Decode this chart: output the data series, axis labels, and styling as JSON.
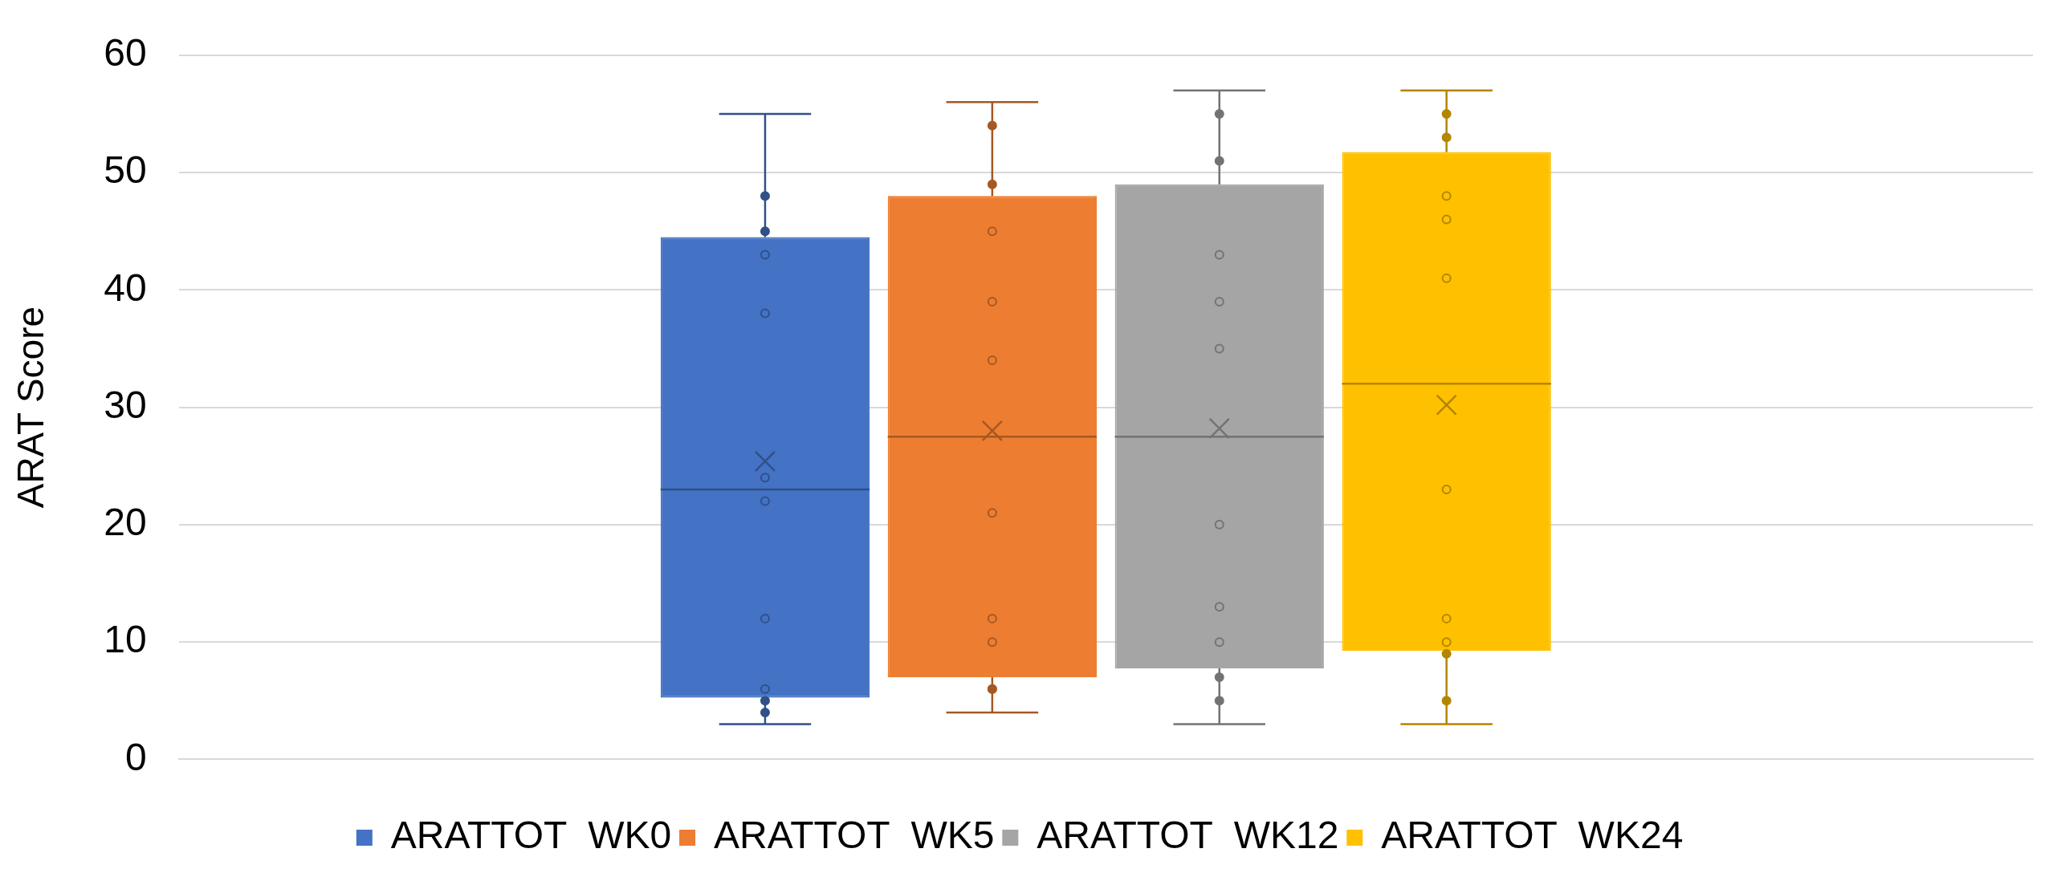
{
  "chart_data": {
    "type": "box",
    "ylabel": "ARAT Score",
    "categories": [
      null
    ],
    "ylim": [
      0,
      60
    ],
    "yticks": [
      0,
      10,
      20,
      30,
      40,
      50,
      60
    ],
    "grid": "y",
    "legend": "bottom",
    "series": [
      {
        "name": "ARATTOT  WK0",
        "color": "#4472c4",
        "boxes": [
          {
            "low": 3,
            "q1": 5.25,
            "median": 23,
            "q3": 44.5,
            "high": 55,
            "mean": 25.4,
            "outliers": [
              4,
              5,
              6,
              12,
              22,
              24,
              38,
              43,
              45,
              48
            ]
          }
        ]
      },
      {
        "name": "ARATTOT  WK5",
        "color": "#ed7d31",
        "boxes": [
          {
            "low": 4,
            "q1": 7,
            "median": 27.5,
            "q3": 48,
            "high": 56,
            "mean": 28,
            "outliers": [
              6,
              6,
              10,
              12,
              21,
              34,
              39,
              45,
              49,
              54
            ]
          }
        ]
      },
      {
        "name": "ARATTOT  WK12",
        "color": "#a5a5a5",
        "boxes": [
          {
            "low": 3,
            "q1": 7.75,
            "median": 27.5,
            "q3": 49,
            "high": 57,
            "mean": 28.2,
            "outliers": [
              5,
              7,
              10,
              13,
              20,
              35,
              39,
              43,
              51,
              55
            ]
          }
        ]
      },
      {
        "name": "ARATTOT  WK24",
        "color": "#ffc000",
        "boxes": [
          {
            "low": 3,
            "q1": 9.25,
            "median": 32,
            "q3": 51.75,
            "high": 57,
            "mean": 30.2,
            "outliers": [
              5,
              9,
              10,
              12,
              23,
              41,
              46,
              48,
              53,
              55
            ]
          }
        ]
      }
    ]
  }
}
